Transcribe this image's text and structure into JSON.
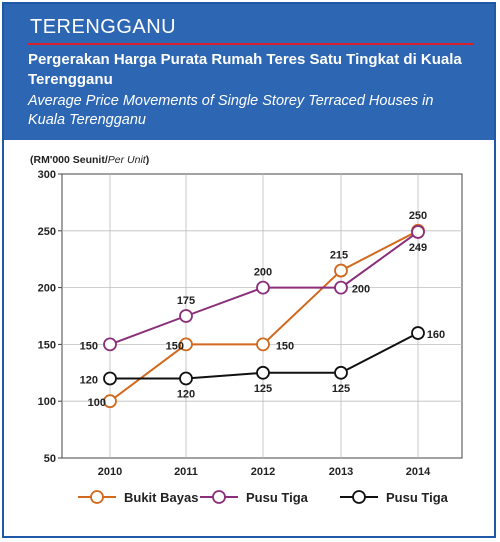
{
  "header": {
    "region": "TERENGGANU",
    "title_ms": "Pergerakan Harga Purata Rumah Teres Satu Tingkat di Kuala Terengganu",
    "title_en": "Average Price Movements of Single Storey Terraced Houses in Kuala Terengganu"
  },
  "unit_label": {
    "main": "(RM'000 Seunit/",
    "italic": "Per Unit",
    "close": ")"
  },
  "colors": {
    "header_bg": "#2d67b3",
    "rule": "#d8202a"
  },
  "chart_data": {
    "type": "line",
    "categories": [
      "2010",
      "2011",
      "2012",
      "2013",
      "2014"
    ],
    "ylim": [
      50,
      300
    ],
    "yticks": [
      50,
      100,
      150,
      200,
      250,
      300
    ],
    "grid": true,
    "legend_position": "bottom",
    "series": [
      {
        "name": "Bukit Bayas",
        "color": "#d2691e",
        "values": [
          100,
          150,
          150,
          215,
          250
        ],
        "labels": [
          "100",
          "150",
          "150",
          "215",
          "250"
        ]
      },
      {
        "name": "Pusu Tiga",
        "color": "#8b2f7a",
        "values": [
          150,
          175,
          200,
          200,
          249
        ],
        "labels": [
          "150",
          "175",
          "200",
          "200",
          "249"
        ]
      },
      {
        "name": "Pusu Tiga",
        "color": "#111111",
        "values": [
          120,
          120,
          125,
          125,
          160
        ],
        "labels": [
          "120",
          "120",
          "125",
          "125",
          "160"
        ]
      }
    ]
  }
}
